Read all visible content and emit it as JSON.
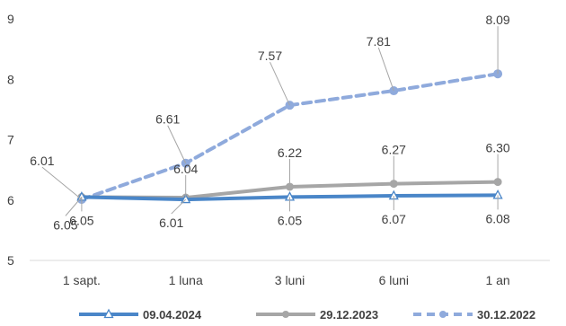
{
  "chart_data": {
    "type": "line",
    "categories": [
      "1 sapt.",
      "1 luna",
      "3 luni",
      "6 luni",
      "1 an"
    ],
    "ylim": [
      5,
      9
    ],
    "yticks": [
      "5",
      "6",
      "7",
      "8",
      "9"
    ],
    "grid": false,
    "legend_position": "bottom",
    "series": [
      {
        "name": "09.04.2024",
        "values": [
          6.05,
          6.01,
          6.05,
          6.07,
          6.08
        ],
        "labels": [
          "6.05",
          "6.01",
          "6.05",
          "6.07",
          "6.08"
        ],
        "color": "#4a86c8",
        "style": "solid",
        "marker": "triangle-open"
      },
      {
        "name": "29.12.2023",
        "values": [
          6.05,
          6.04,
          6.22,
          6.27,
          6.3
        ],
        "labels": [
          "6.05",
          "6.04",
          "6.22",
          "6.27",
          "6.30"
        ],
        "color": "#a6a6a6",
        "style": "solid",
        "marker": "circle"
      },
      {
        "name": "30.12.2022",
        "values": [
          6.01,
          6.61,
          7.57,
          7.81,
          8.09
        ],
        "labels": [
          "6.01",
          "6.61",
          "7.57",
          "7.81",
          "8.09"
        ],
        "color": "#8faadc",
        "style": "dashed",
        "marker": "circle"
      }
    ]
  }
}
